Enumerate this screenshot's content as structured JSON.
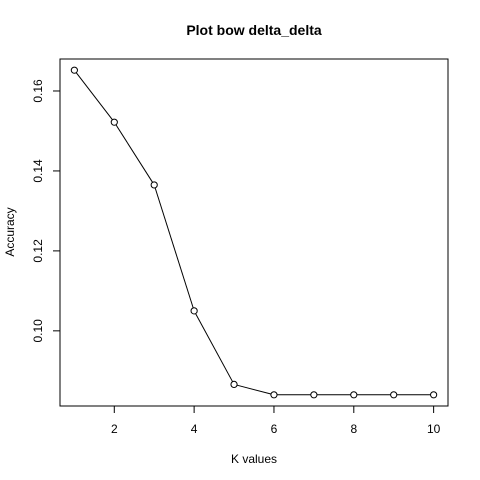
{
  "chart_data": {
    "type": "line",
    "title": "Plot bow delta_delta",
    "xlabel": "K values",
    "ylabel": "Accuracy",
    "x": [
      1,
      2,
      3,
      4,
      5,
      6,
      7,
      8,
      9,
      10
    ],
    "series": [
      {
        "values": [
          0.1652,
          0.1522,
          0.1365,
          0.105,
          0.0866,
          0.084,
          0.084,
          0.084,
          0.084,
          0.084
        ]
      }
    ],
    "xlim": [
      0.64,
      10.36
    ],
    "ylim": [
      0.0812,
      0.168
    ],
    "x_ticks": [
      2,
      4,
      6,
      8,
      10
    ],
    "y_ticks": [
      0.1,
      0.12,
      0.14,
      0.16
    ],
    "x_tick_labels": [
      "2",
      "4",
      "6",
      "8",
      "10"
    ],
    "y_tick_labels": [
      "0.10",
      "0.12",
      "0.14",
      "0.16"
    ],
    "grid": false,
    "marker": "open-circle",
    "line_color": "#000000"
  }
}
